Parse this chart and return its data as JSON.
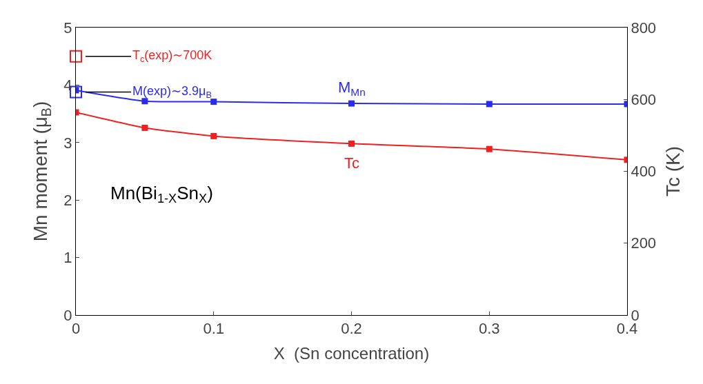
{
  "chart_data": {
    "type": "line",
    "xlabel": "X  (Sn concentration)",
    "ylabel": "Mn moment (μ$_{B}$)",
    "y2label": "Tc (K)",
    "x": [
      0,
      0.05,
      0.1,
      0.2,
      0.3,
      0.4
    ],
    "series": [
      {
        "name": "M$_{Mn}$",
        "color": "#2b2bf0",
        "values": [
          3.91,
          3.72,
          3.71,
          3.68,
          3.67,
          3.67
        ]
      },
      {
        "name": "Tc",
        "color": "#f02020",
        "axis": "y2",
        "values": [
          564,
          521,
          498,
          477,
          462,
          432
        ]
      },
      {
        "type": "scatter",
        "color": "#f02020",
        "axis": "y2",
        "x": [
          0
        ],
        "values": [
          720
        ]
      },
      {
        "type": "scatter",
        "color": "#2b2bf0",
        "x": [
          0
        ],
        "values": [
          3.88
        ]
      }
    ],
    "annotations": [
      {
        "text": "T$_{c}$(exp)∼700K",
        "x": 0,
        "y": 4.5
      },
      {
        "text": "M(exp)∼3.9μ$_{B}$",
        "x": 0,
        "y": 3.88
      },
      "Mn(Bi$_{1-X}$Sn$_{X}$)"
    ],
    "xlim": [
      0,
      0.4
    ],
    "xticks": [
      0,
      0.1,
      0.2,
      0.3,
      0.4
    ],
    "ylim": [
      0,
      5
    ],
    "yticks": [
      0,
      1,
      2,
      3,
      4,
      5
    ],
    "y2lim": [
      0,
      800
    ],
    "y2ticks": [
      0,
      200,
      400,
      600,
      800
    ],
    "marker": "square"
  }
}
